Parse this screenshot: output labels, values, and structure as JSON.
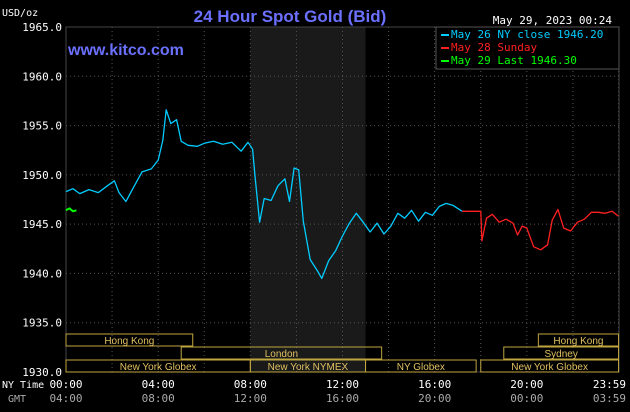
{
  "chart_data": {
    "type": "line",
    "title": "24 Hour Spot Gold (Bid)",
    "website": "www.kitco.com",
    "unit_label": "USD/oz",
    "timestamp": "May 29, 2023 00:24",
    "ylim": [
      1930,
      1965
    ],
    "y_ticks": [
      "1965.0",
      "1960.0",
      "1955.0",
      "1950.0",
      "1945.0",
      "1940.0",
      "1935.0",
      "1930.0"
    ],
    "x_ticks_ny": [
      "00:00",
      "04:00",
      "08:00",
      "12:00",
      "16:00",
      "20:00",
      "23:59"
    ],
    "x_ticks_gmt": [
      "04:00",
      "08:00",
      "12:00",
      "16:00",
      "20:00",
      "00:00",
      "03:59"
    ],
    "x_axis_label_ny": "NY Time",
    "x_axis_label_gmt": "GMT",
    "legend": [
      {
        "label": "May 26 NY close 1946.20",
        "color": "#00ccff"
      },
      {
        "label": "May 28 Sunday",
        "color": "#ff2020"
      },
      {
        "label": "May 29 Last 1946.30",
        "color": "#00ff00"
      }
    ],
    "sessions": [
      {
        "label": "Hong Kong",
        "row": 0
      },
      {
        "label": "London",
        "row": 1
      },
      {
        "label": "New York Globex",
        "row": 2
      },
      {
        "label": "New York NYMEX",
        "row": 2
      },
      {
        "label": "NY Globex",
        "row": 2
      },
      {
        "label": "Hong Kong",
        "row": 0
      },
      {
        "label": "Sydney",
        "row": 1
      },
      {
        "label": "New York Globex",
        "row": 2
      }
    ],
    "series": [
      {
        "color": "#00ccff",
        "points": [
          [
            0.0,
            1948.3
          ],
          [
            0.3,
            1948.6
          ],
          [
            0.6,
            1948.1
          ],
          [
            1.0,
            1948.5
          ],
          [
            1.4,
            1948.2
          ],
          [
            1.8,
            1948.9
          ],
          [
            2.1,
            1949.4
          ],
          [
            2.3,
            1948.2
          ],
          [
            2.6,
            1947.3
          ],
          [
            2.9,
            1948.6
          ],
          [
            3.3,
            1950.3
          ],
          [
            3.7,
            1950.6
          ],
          [
            4.0,
            1951.5
          ],
          [
            4.2,
            1953.5
          ],
          [
            4.35,
            1956.6
          ],
          [
            4.55,
            1955.2
          ],
          [
            4.8,
            1955.6
          ],
          [
            5.0,
            1953.4
          ],
          [
            5.3,
            1953.0
          ],
          [
            5.7,
            1952.9
          ],
          [
            6.0,
            1953.2
          ],
          [
            6.4,
            1953.4
          ],
          [
            6.8,
            1953.1
          ],
          [
            7.2,
            1953.3
          ],
          [
            7.6,
            1952.4
          ],
          [
            7.9,
            1953.3
          ],
          [
            8.1,
            1952.6
          ],
          [
            8.2,
            1950.0
          ],
          [
            8.4,
            1945.2
          ],
          [
            8.6,
            1947.6
          ],
          [
            8.9,
            1947.4
          ],
          [
            9.2,
            1948.9
          ],
          [
            9.5,
            1949.6
          ],
          [
            9.7,
            1947.3
          ],
          [
            9.9,
            1950.7
          ],
          [
            10.1,
            1950.5
          ],
          [
            10.3,
            1945.3
          ],
          [
            10.6,
            1941.4
          ],
          [
            10.9,
            1940.3
          ],
          [
            11.1,
            1939.5
          ],
          [
            11.4,
            1941.3
          ],
          [
            11.7,
            1942.3
          ],
          [
            12.0,
            1943.8
          ],
          [
            12.3,
            1945.1
          ],
          [
            12.6,
            1946.1
          ],
          [
            12.9,
            1945.2
          ],
          [
            13.2,
            1944.2
          ],
          [
            13.5,
            1945.1
          ],
          [
            13.8,
            1944.0
          ],
          [
            14.1,
            1944.8
          ],
          [
            14.4,
            1946.1
          ],
          [
            14.7,
            1945.6
          ],
          [
            15.0,
            1946.4
          ],
          [
            15.3,
            1945.3
          ],
          [
            15.6,
            1946.2
          ],
          [
            15.9,
            1945.9
          ],
          [
            16.2,
            1946.8
          ],
          [
            16.5,
            1947.1
          ],
          [
            16.8,
            1946.9
          ],
          [
            17.0,
            1946.6
          ],
          [
            17.2,
            1946.3
          ]
        ]
      },
      {
        "color": "#ff2020",
        "points": [
          [
            17.2,
            1946.3
          ],
          [
            18.0,
            1946.3
          ],
          [
            18.05,
            1943.3
          ],
          [
            18.25,
            1945.6
          ],
          [
            18.5,
            1946.0
          ],
          [
            18.8,
            1945.2
          ],
          [
            19.1,
            1945.5
          ],
          [
            19.4,
            1945.1
          ],
          [
            19.6,
            1943.9
          ],
          [
            19.8,
            1944.8
          ],
          [
            20.0,
            1944.6
          ],
          [
            20.3,
            1942.7
          ],
          [
            20.6,
            1942.4
          ],
          [
            20.9,
            1942.9
          ],
          [
            21.1,
            1945.4
          ],
          [
            21.35,
            1946.5
          ],
          [
            21.6,
            1944.6
          ],
          [
            21.9,
            1944.3
          ],
          [
            22.2,
            1945.2
          ],
          [
            22.5,
            1945.5
          ],
          [
            22.8,
            1946.2
          ],
          [
            23.1,
            1946.2
          ],
          [
            23.4,
            1946.1
          ],
          [
            23.7,
            1946.3
          ],
          [
            23.98,
            1945.8
          ]
        ]
      },
      {
        "color": "#00ff00",
        "points": [
          [
            0.0,
            1946.4
          ],
          [
            0.15,
            1946.6
          ],
          [
            0.3,
            1946.3
          ],
          [
            0.45,
            1946.4
          ]
        ]
      }
    ],
    "grid": true,
    "highlight_band_hours": [
      8.0,
      13.0
    ]
  }
}
